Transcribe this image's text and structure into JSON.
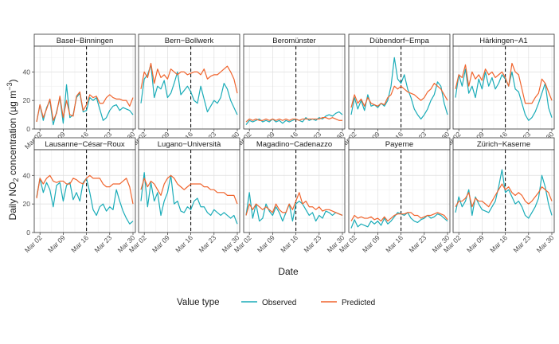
{
  "chart_data": {
    "type": "line",
    "xlabel": "Date",
    "ylabel": "Daily NO2 concentration (µg m−3)",
    "ylabel_parts": {
      "pre": "Daily NO",
      "sub": "2",
      "mid": " concentration (µg m",
      "sup": "−3",
      "post": ")"
    },
    "x_ticks": [
      "Mar 02",
      "Mar 09",
      "Mar 16",
      "Mar 23",
      "Mar 30"
    ],
    "x_tick_days": [
      2,
      9,
      16,
      23,
      30
    ],
    "x_range_days": [
      1,
      30
    ],
    "ylim": [
      0,
      58
    ],
    "y_ticks": [
      0,
      20,
      40
    ],
    "vline_day": 16,
    "legend_title": "Value type",
    "legend": [
      {
        "name": "Observed",
        "color": "#1aacb8"
      },
      {
        "name": "Predicted",
        "color": "#f0642d"
      }
    ],
    "panels": [
      {
        "name": "Basel−Binningen",
        "observed": [
          5,
          17,
          6,
          15,
          20,
          3,
          12,
          22,
          4,
          31,
          8,
          10,
          22,
          25,
          12,
          13,
          22,
          20,
          22,
          14,
          6,
          8,
          13,
          16,
          17,
          13,
          15,
          14,
          13,
          10
        ],
        "predicted": [
          5,
          17,
          8,
          14,
          21,
          6,
          11,
          23,
          8,
          20,
          10,
          9,
          23,
          26,
          13,
          17,
          24,
          22,
          23,
          18,
          18,
          22,
          24,
          22,
          21,
          21,
          20,
          20,
          16,
          22
        ]
      },
      {
        "name": "Bern−Bollwerk",
        "observed": [
          18,
          35,
          38,
          45,
          22,
          30,
          28,
          34,
          22,
          25,
          32,
          40,
          24,
          27,
          30,
          26,
          20,
          18,
          30,
          21,
          12,
          16,
          20,
          18,
          22,
          32,
          28,
          20,
          15,
          10
        ],
        "predicted": [
          28,
          40,
          36,
          46,
          32,
          42,
          36,
          38,
          35,
          42,
          40,
          38,
          40,
          40,
          38,
          39,
          40,
          40,
          38,
          42,
          35,
          37,
          38,
          38,
          40,
          42,
          44,
          40,
          35,
          25
        ]
      },
      {
        "name": "Beromünster",
        "observed": [
          3,
          6,
          5,
          6,
          7,
          5,
          6,
          5,
          7,
          5,
          6,
          4,
          6,
          5,
          6,
          7,
          6,
          5,
          8,
          6,
          7,
          6,
          8,
          7,
          9,
          10,
          9,
          11,
          12,
          10
        ],
        "predicted": [
          5,
          7,
          6,
          7,
          6,
          6,
          7,
          6,
          7,
          6,
          7,
          6,
          7,
          6,
          7,
          7,
          6,
          7,
          7,
          7,
          7,
          7,
          7,
          8,
          8,
          7,
          8,
          7,
          6,
          6
        ]
      },
      {
        "name": "Dübendorf−Empa",
        "observed": [
          10,
          22,
          14,
          20,
          13,
          24,
          16,
          17,
          15,
          18,
          16,
          20,
          30,
          50,
          35,
          32,
          38,
          28,
          22,
          14,
          10,
          7,
          10,
          14,
          20,
          24,
          33,
          30,
          18,
          10
        ],
        "predicted": [
          15,
          24,
          18,
          21,
          16,
          22,
          18,
          17,
          16,
          18,
          17,
          22,
          24,
          30,
          28,
          30,
          28,
          26,
          25,
          24,
          22,
          20,
          22,
          26,
          28,
          32,
          30,
          28,
          24,
          20
        ]
      },
      {
        "name": "Härkingen−A1",
        "observed": [
          22,
          38,
          30,
          42,
          25,
          30,
          22,
          35,
          28,
          40,
          30,
          36,
          28,
          32,
          38,
          35,
          30,
          40,
          28,
          26,
          18,
          10,
          6,
          8,
          12,
          18,
          25,
          32,
          15,
          8
        ],
        "predicted": [
          28,
          38,
          36,
          45,
          30,
          40,
          35,
          38,
          34,
          42,
          38,
          40,
          36,
          38,
          40,
          36,
          30,
          46,
          40,
          38,
          28,
          18,
          18,
          18,
          22,
          25,
          35,
          32,
          26,
          20
        ]
      },
      {
        "name": "Lausanne−César−Roux",
        "observed": [
          25,
          38,
          28,
          35,
          30,
          18,
          33,
          35,
          22,
          33,
          35,
          23,
          28,
          22,
          35,
          38,
          28,
          16,
          12,
          18,
          20,
          15,
          18,
          16,
          30,
          22,
          15,
          10,
          6,
          8
        ],
        "predicted": [
          24,
          38,
          34,
          38,
          40,
          36,
          35,
          36,
          36,
          34,
          34,
          38,
          37,
          35,
          34,
          38,
          40,
          38,
          38,
          38,
          34,
          32,
          32,
          34,
          34,
          34,
          36,
          38,
          32,
          20
        ]
      },
      {
        "name": "Lugano−Università",
        "observed": [
          22,
          42,
          18,
          35,
          22,
          28,
          12,
          22,
          28,
          40,
          20,
          22,
          15,
          14,
          18,
          16,
          22,
          24,
          18,
          18,
          14,
          12,
          16,
          14,
          12,
          14,
          12,
          10,
          12,
          6
        ],
        "predicted": [
          30,
          38,
          32,
          36,
          34,
          30,
          26,
          34,
          38,
          40,
          38,
          34,
          32,
          30,
          32,
          34,
          34,
          34,
          34,
          32,
          32,
          30,
          30,
          28,
          28,
          28,
          26,
          26,
          26,
          20
        ]
      },
      {
        "name": "Magadino−Cadenazzo",
        "observed": [
          12,
          28,
          10,
          20,
          8,
          10,
          20,
          15,
          12,
          18,
          14,
          8,
          14,
          20,
          8,
          20,
          22,
          20,
          16,
          12,
          14,
          8,
          12,
          10,
          15,
          14,
          12,
          14,
          13,
          12
        ],
        "predicted": [
          12,
          20,
          16,
          20,
          18,
          16,
          18,
          16,
          14,
          20,
          16,
          14,
          14,
          20,
          16,
          22,
          28,
          20,
          22,
          18,
          18,
          16,
          18,
          15,
          16,
          16,
          15,
          14,
          13,
          12
        ]
      },
      {
        "name": "Payerne",
        "observed": [
          3,
          9,
          4,
          6,
          5,
          4,
          8,
          6,
          8,
          5,
          10,
          6,
          8,
          11,
          14,
          13,
          12,
          14,
          10,
          8,
          7,
          9,
          10,
          12,
          10,
          11,
          13,
          12,
          10,
          8
        ],
        "predicted": [
          8,
          12,
          10,
          11,
          10,
          10,
          11,
          9,
          10,
          8,
          11,
          8,
          10,
          12,
          13,
          13,
          13,
          14,
          14,
          12,
          12,
          10,
          11,
          12,
          12,
          13,
          14,
          13,
          12,
          9
        ]
      },
      {
        "name": "Zürich−Kaserne",
        "observed": [
          14,
          25,
          18,
          22,
          30,
          12,
          25,
          20,
          16,
          15,
          14,
          18,
          22,
          32,
          44,
          28,
          30,
          25,
          20,
          22,
          18,
          12,
          10,
          14,
          18,
          24,
          40,
          32,
          20,
          12
        ],
        "predicted": [
          18,
          22,
          22,
          24,
          28,
          18,
          24,
          22,
          22,
          20,
          18,
          22,
          26,
          30,
          34,
          30,
          32,
          28,
          26,
          28,
          26,
          22,
          20,
          22,
          25,
          28,
          32,
          30,
          28,
          22
        ]
      }
    ]
  }
}
